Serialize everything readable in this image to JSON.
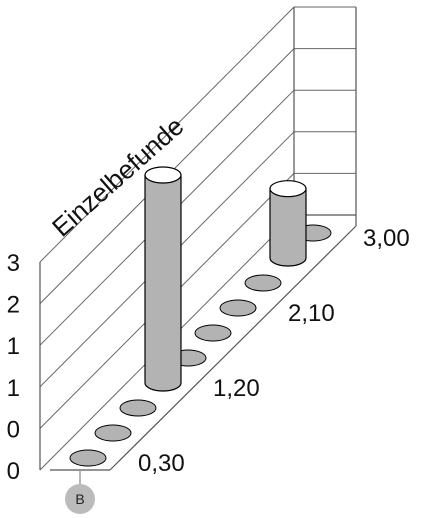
{
  "chart_data": {
    "type": "bar",
    "style": "3d-cylinder",
    "ylabel": "Einzelbefunde",
    "ytick_labels": [
      "0",
      "0",
      "1",
      "1",
      "2",
      "3"
    ],
    "category_labels": [
      "0,30",
      "1,20",
      "2,10",
      "3,00"
    ],
    "x": [
      0.3,
      0.6,
      0.9,
      1.2,
      1.5,
      1.8,
      2.1,
      2.4,
      2.7,
      3.0
    ],
    "values": [
      0,
      0,
      0,
      3,
      0,
      0,
      0,
      0,
      1,
      0
    ],
    "ylim": [
      0,
      3
    ],
    "grid": true,
    "colors": {
      "cylinder": "#b3b3b3",
      "cylinder_top": "#ffffff",
      "outline": "#000000",
      "badge": "#bbbbbb"
    }
  },
  "badge": {
    "label": "B"
  }
}
